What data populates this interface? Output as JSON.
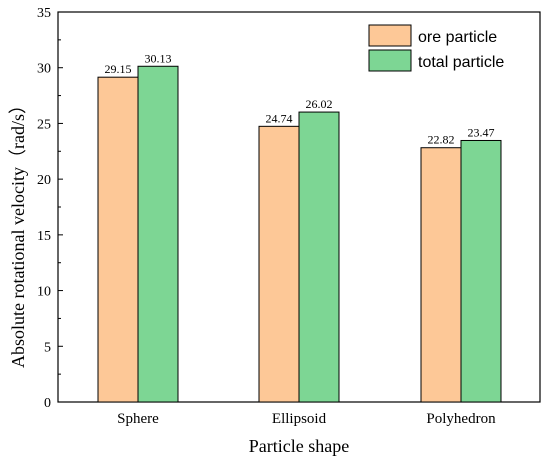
{
  "chart_data": {
    "type": "bar",
    "title": "",
    "xlabel": "Particle shape",
    "ylabel": "Absolute rotational velocity（rad/s）",
    "categories": [
      "Sphere",
      "Ellipsoid",
      "Polyhedron"
    ],
    "series": [
      {
        "name": "ore particle",
        "color": "#fdc897",
        "values": [
          29.15,
          24.74,
          22.82
        ],
        "labels": [
          "29.15",
          "24.74",
          "22.82"
        ]
      },
      {
        "name": "total particle",
        "color": "#7dd694",
        "values": [
          30.13,
          26.02,
          23.47
        ],
        "labels": [
          "30.13",
          "26.02",
          "23.47"
        ]
      }
    ],
    "ylim": [
      0,
      35
    ],
    "yticks": [
      0,
      5,
      10,
      15,
      20,
      25,
      30,
      35
    ],
    "grid": false,
    "legend_position": "top-right"
  }
}
